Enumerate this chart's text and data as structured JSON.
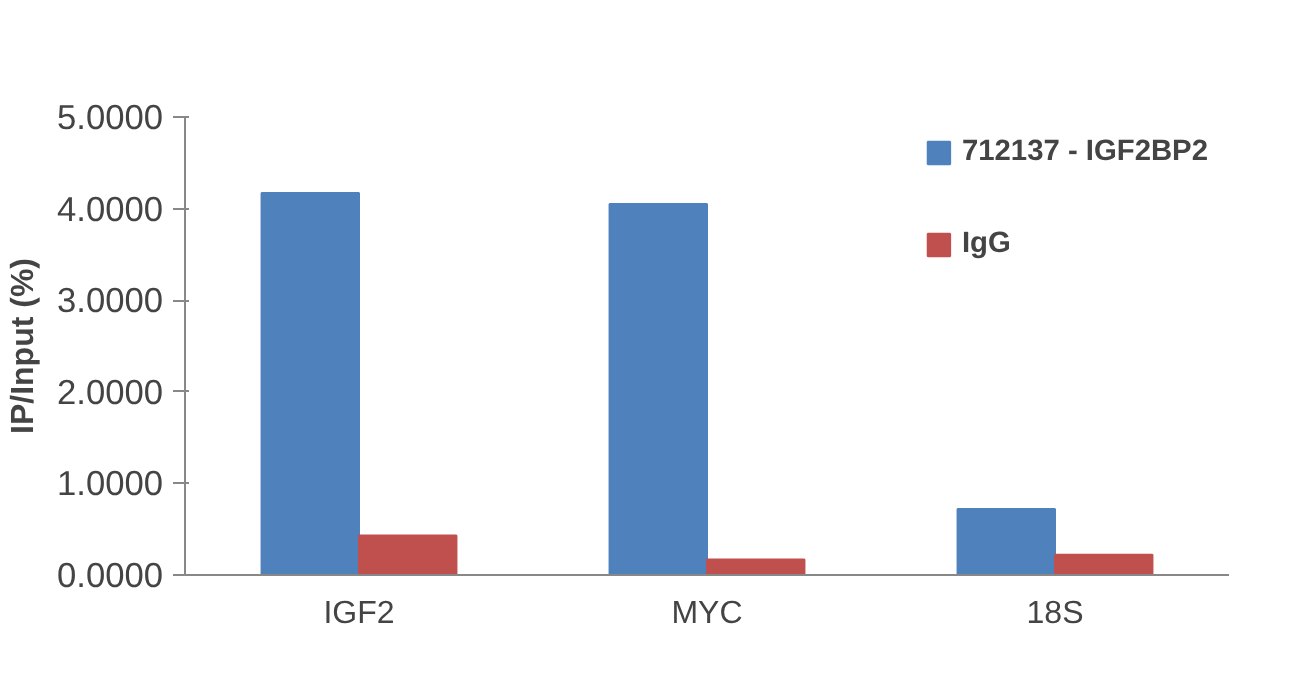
{
  "chart_data": {
    "type": "bar",
    "ylabel": "IP/Input (%)",
    "categories": [
      "IGF2",
      "MYC",
      "18S"
    ],
    "series": [
      {
        "name": "712137 - IGF2BP2",
        "color": "#4f81bd",
        "values": [
          4.17,
          4.05,
          0.72
        ]
      },
      {
        "name": "IgG",
        "color": "#c0504d",
        "values": [
          0.43,
          0.17,
          0.22
        ]
      }
    ],
    "ylim": [
      0,
      5
    ],
    "yticks": [
      {
        "value": 0,
        "label": "0.0000"
      },
      {
        "value": 1,
        "label": "1.0000"
      },
      {
        "value": 2,
        "label": "2.0000"
      },
      {
        "value": 3,
        "label": "3.0000"
      },
      {
        "value": 4,
        "label": "4.0000"
      },
      {
        "value": 5,
        "label": "5.0000"
      }
    ],
    "grid": false,
    "legend": "top right"
  }
}
